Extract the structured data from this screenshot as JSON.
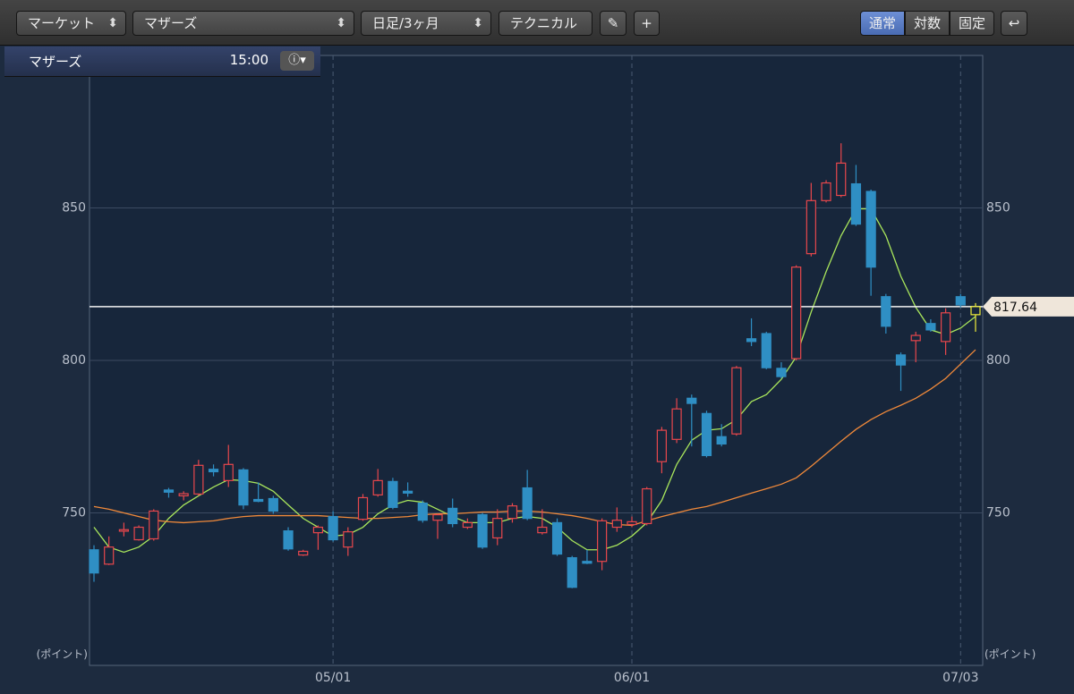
{
  "toolbar": {
    "market": "マーケット",
    "symbol": "マザーズ",
    "period": "日足/3ヶ月",
    "technical": "テクニカル",
    "scale_modes": [
      "通常",
      "対数",
      "固定"
    ]
  },
  "panel": {
    "name": "マザーズ",
    "time": "15:00"
  },
  "chart_data": {
    "type": "candlestick",
    "y_label": "(ポイント)",
    "categories": [
      null,
      null,
      null,
      null,
      null,
      null,
      null,
      null,
      null,
      null,
      null,
      null,
      null,
      null,
      null,
      null,
      "05/01",
      null,
      null,
      null,
      null,
      null,
      null,
      null,
      null,
      null,
      null,
      null,
      null,
      null,
      null,
      null,
      null,
      null,
      null,
      null,
      "06/01",
      null,
      null,
      null,
      null,
      null,
      null,
      null,
      null,
      null,
      null,
      null,
      null,
      null,
      null,
      null,
      null,
      null,
      null,
      null,
      null,
      null,
      "07/03",
      null
    ],
    "open": [
      737.9,
      733.2,
      744.0,
      741.2,
      741.5,
      757.5,
      755.6,
      756.2,
      764.3,
      760.6,
      764.1,
      754.4,
      754.7,
      744.1,
      736.2,
      743.5,
      748.8,
      738.8,
      747.9,
      755.9,
      760.3,
      757.1,
      753.2,
      747.6,
      751.5,
      745.3,
      749.4,
      741.8,
      748.2,
      758.2,
      743.5,
      746.8,
      735.3,
      734.1,
      734.1,
      745.3,
      746.2,
      746.5,
      766.8,
      774.1,
      787.6,
      782.6,
      775.0,
      775.9,
      807.1,
      808.8,
      797.4,
      800.6,
      835.0,
      852.4,
      854.1,
      857.9,
      855.4,
      820.9,
      801.8,
      806.5,
      812.1,
      806.2,
      820.9,
      815.0
    ],
    "high": [
      739.4,
      742.3,
      746.8,
      745.9,
      751.2,
      758.2,
      757.1,
      767.4,
      765.9,
      772.3,
      764.7,
      760.0,
      755.6,
      745.3,
      737.9,
      745.9,
      750.6,
      745.3,
      756.2,
      764.4,
      761.5,
      760.0,
      754.1,
      749.7,
      754.7,
      748.2,
      750.0,
      751.2,
      753.2,
      764.1,
      751.2,
      748.2,
      735.9,
      737.9,
      748.2,
      751.8,
      748.8,
      758.5,
      778.2,
      787.6,
      788.8,
      783.5,
      779.1,
      798.2,
      813.8,
      809.4,
      799.4,
      831.2,
      858.2,
      859.1,
      871.2,
      864.1,
      856.0,
      821.8,
      802.6,
      809.4,
      813.5,
      817.1,
      821.8,
      818.8
    ],
    "low": [
      727.4,
      732.9,
      742.3,
      740.9,
      740.9,
      755.0,
      754.1,
      755.6,
      762.0,
      758.5,
      751.2,
      753.5,
      749.7,
      737.6,
      735.9,
      737.9,
      740.6,
      735.9,
      747.4,
      755.3,
      751.2,
      755.3,
      746.8,
      741.5,
      745.3,
      744.7,
      738.2,
      739.4,
      746.8,
      747.6,
      742.9,
      735.9,
      725.3,
      733.2,
      731.2,
      743.8,
      745.3,
      745.9,
      763.0,
      772.9,
      771.8,
      768.2,
      771.8,
      775.3,
      804.7,
      797.1,
      794.1,
      800.0,
      834.1,
      851.8,
      853.5,
      844.1,
      821.2,
      808.8,
      790.0,
      799.4,
      809.4,
      801.8,
      817.4,
      809.4
    ],
    "close": [
      730.3,
      738.8,
      744.5,
      745.3,
      750.6,
      756.8,
      756.3,
      765.6,
      763.5,
      765.9,
      752.6,
      753.8,
      750.6,
      738.2,
      737.4,
      745.3,
      741.2,
      743.8,
      755.0,
      760.6,
      751.8,
      756.5,
      747.6,
      749.4,
      746.5,
      746.8,
      738.8,
      748.2,
      752.3,
      748.2,
      745.3,
      736.5,
      725.6,
      733.5,
      747.4,
      747.6,
      747.1,
      757.9,
      777.1,
      784.1,
      785.9,
      768.8,
      772.6,
      797.6,
      806.2,
      797.6,
      794.7,
      830.6,
      852.4,
      858.2,
      864.7,
      844.7,
      830.6,
      811.2,
      798.5,
      808.2,
      810.0,
      815.6,
      818.2,
      817.64
    ],
    "up_color": "#e8474c",
    "down_color": "#2f8fc4",
    "highlight_color": "#f2f03a",
    "series": [
      {
        "color": "#a9e65c",
        "values": [
          745.3,
          738.8,
          737.1,
          738.8,
          742.4,
          748.2,
          752.6,
          755.6,
          758.5,
          760.9,
          760.6,
          759.7,
          757.1,
          752.6,
          748.2,
          745.3,
          742.4,
          742.9,
          745.3,
          749.7,
          752.6,
          754.1,
          753.5,
          751.2,
          748.8,
          746.8,
          746.8,
          746.8,
          748.2,
          748.8,
          748.2,
          745.3,
          740.9,
          737.9,
          737.9,
          739.4,
          742.4,
          746.8,
          754.1,
          765.9,
          773.8,
          777.1,
          777.6,
          780.6,
          786.5,
          788.8,
          793.8,
          801.2,
          815.9,
          829.1,
          840.9,
          849.7,
          849.7,
          840.9,
          827.6,
          817.4,
          810.0,
          808.5,
          810.6,
          814.4
        ]
      },
      {
        "color": "#f0893a",
        "values": [
          752.1,
          751.2,
          750.0,
          748.8,
          747.6,
          747.1,
          746.8,
          747.1,
          747.4,
          748.2,
          748.8,
          749.1,
          749.1,
          749.1,
          749.1,
          749.1,
          748.8,
          748.5,
          748.2,
          748.2,
          748.5,
          748.8,
          749.4,
          749.7,
          749.7,
          750.0,
          750.3,
          750.3,
          750.6,
          750.6,
          750.3,
          749.7,
          749.1,
          748.2,
          747.1,
          746.2,
          745.9,
          747.4,
          748.8,
          750.0,
          751.2,
          752.1,
          753.5,
          755.0,
          756.5,
          757.9,
          759.4,
          761.5,
          765.3,
          769.4,
          773.5,
          777.4,
          780.6,
          783.2,
          785.3,
          787.6,
          790.6,
          794.1,
          798.8,
          803.5
        ]
      }
    ],
    "ylim": [
      700,
      900
    ],
    "yticks": [
      750,
      800,
      850
    ],
    "grid": true
  }
}
